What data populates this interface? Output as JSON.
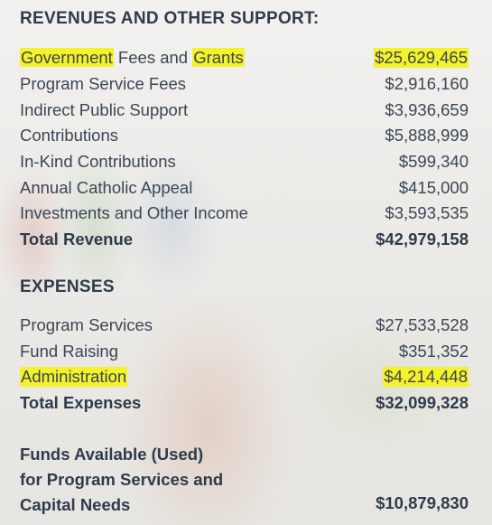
{
  "revenues": {
    "heading": "REVENUES AND OTHER SUPPORT:",
    "items": [
      {
        "label_parts": [
          "Government",
          " Fees and ",
          "Grants"
        ],
        "value": "$25,629,465"
      },
      {
        "label": "Program Service Fees",
        "value": "$2,916,160"
      },
      {
        "label": "Indirect Public Support",
        "value": "$3,936,659"
      },
      {
        "label": "Contributions",
        "value": "$5,888,999"
      },
      {
        "label": "In-Kind Contributions",
        "value": "$599,340"
      },
      {
        "label": "Annual Catholic Appeal",
        "value": "$415,000"
      },
      {
        "label": "Investments and Other Income",
        "value": "$3,593,535"
      }
    ],
    "total": {
      "label": "Total Revenue",
      "value": "$42,979,158"
    }
  },
  "expenses": {
    "heading": "EXPENSES",
    "items": [
      {
        "label": "Program Services",
        "value": "$27,533,528"
      },
      {
        "label": "Fund Raising",
        "value": "$351,352"
      },
      {
        "label": "Administration",
        "value": "$4,214,448"
      }
    ],
    "total": {
      "label": "Total Expenses",
      "value": "$32,099,328"
    }
  },
  "funds": {
    "lines": [
      "Funds Available (Used)",
      "for Program Services and",
      "Capital Needs"
    ],
    "value": "$10,879,830"
  },
  "colors": {
    "text": "#2f3b4c",
    "highlight": "#f4f229"
  }
}
